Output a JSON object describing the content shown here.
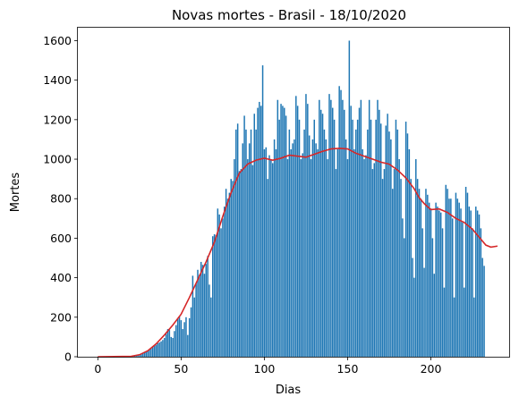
{
  "chart_data": {
    "type": "bar",
    "title": "Novas mortes - Brasil - 18/10/2020",
    "xlabel": "Dias",
    "ylabel": "Mortes",
    "xlim": [
      -12,
      247
    ],
    "ylim": [
      0,
      1670
    ],
    "xticks": [
      0,
      50,
      100,
      150,
      200
    ],
    "yticks": [
      0,
      200,
      400,
      600,
      800,
      1000,
      1200,
      1400,
      1600
    ],
    "grid": false,
    "series": [
      {
        "kind": "bar",
        "color": "#1f77b4",
        "x_start": 0,
        "values": [
          0,
          0,
          0,
          0,
          0,
          0,
          0,
          0,
          0,
          0,
          0,
          0,
          0,
          0,
          0,
          0,
          0,
          0,
          1,
          2,
          3,
          5,
          6,
          8,
          10,
          12,
          15,
          18,
          22,
          27,
          30,
          36,
          43,
          50,
          55,
          60,
          68,
          72,
          78,
          85,
          95,
          115,
          140,
          135,
          100,
          95,
          130,
          160,
          190,
          205,
          185,
          140,
          175,
          200,
          110,
          195,
          250,
          410,
          300,
          370,
          440,
          415,
          480,
          465,
          420,
          470,
          510,
          365,
          300,
          610,
          620,
          615,
          750,
          720,
          650,
          700,
          760,
          850,
          800,
          830,
          900,
          890,
          1000,
          1150,
          1180,
          940,
          950,
          1080,
          1220,
          1150,
          1000,
          1080,
          1150,
          970,
          1230,
          1150,
          1260,
          1290,
          1270,
          1475,
          1050,
          1060,
          900,
          1020,
          1000,
          980,
          1100,
          1050,
          1300,
          1200,
          1280,
          1270,
          1260,
          1220,
          1000,
          1150,
          1050,
          1080,
          1100,
          1320,
          1270,
          1200,
          1000,
          1030,
          1150,
          1330,
          1280,
          1120,
          1000,
          1100,
          1200,
          1080,
          1050,
          1300,
          1250,
          1230,
          1150,
          1100,
          1000,
          1330,
          1300,
          1260,
          1200,
          950,
          1050,
          1370,
          1350,
          1300,
          1250,
          1100,
          1000,
          1600,
          1270,
          1200,
          1050,
          1150,
          1200,
          1260,
          1300,
          1050,
          1000,
          1020,
          1150,
          1300,
          1200,
          950,
          980,
          1200,
          1300,
          1250,
          1180,
          900,
          950,
          1170,
          1230,
          1140,
          1100,
          850,
          950,
          1200,
          1150,
          1000,
          900,
          700,
          600,
          1190,
          1130,
          1050,
          900,
          500,
          400,
          1000,
          900,
          850,
          800,
          650,
          450,
          850,
          820,
          780,
          750,
          600,
          420,
          780,
          760,
          740,
          730,
          650,
          350,
          870,
          850,
          800,
          800,
          700,
          300,
          830,
          800,
          780,
          750,
          680,
          350,
          860,
          830,
          760,
          740,
          650,
          300,
          760,
          740,
          720,
          650,
          500,
          460
        ]
      },
      {
        "kind": "line",
        "color": "#d62728",
        "points": [
          [
            0,
            0
          ],
          [
            20,
            2
          ],
          [
            25,
            10
          ],
          [
            30,
            30
          ],
          [
            35,
            65
          ],
          [
            40,
            110
          ],
          [
            45,
            160
          ],
          [
            50,
            215
          ],
          [
            55,
            300
          ],
          [
            60,
            390
          ],
          [
            65,
            480
          ],
          [
            70,
            580
          ],
          [
            75,
            710
          ],
          [
            80,
            830
          ],
          [
            85,
            930
          ],
          [
            90,
            975
          ],
          [
            95,
            995
          ],
          [
            100,
            1005
          ],
          [
            105,
            995
          ],
          [
            110,
            1005
          ],
          [
            115,
            1020
          ],
          [
            120,
            1015
          ],
          [
            125,
            1010
          ],
          [
            130,
            1025
          ],
          [
            135,
            1040
          ],
          [
            140,
            1052
          ],
          [
            145,
            1055
          ],
          [
            150,
            1052
          ],
          [
            155,
            1030
          ],
          [
            160,
            1015
          ],
          [
            165,
            1000
          ],
          [
            170,
            985
          ],
          [
            175,
            975
          ],
          [
            180,
            945
          ],
          [
            185,
            905
          ],
          [
            190,
            850
          ],
          [
            193,
            805
          ],
          [
            196,
            775
          ],
          [
            200,
            745
          ],
          [
            205,
            748
          ],
          [
            210,
            730
          ],
          [
            215,
            700
          ],
          [
            220,
            680
          ],
          [
            225,
            645
          ],
          [
            230,
            595
          ],
          [
            233,
            565
          ],
          [
            236,
            555
          ],
          [
            240,
            560
          ]
        ]
      }
    ]
  }
}
